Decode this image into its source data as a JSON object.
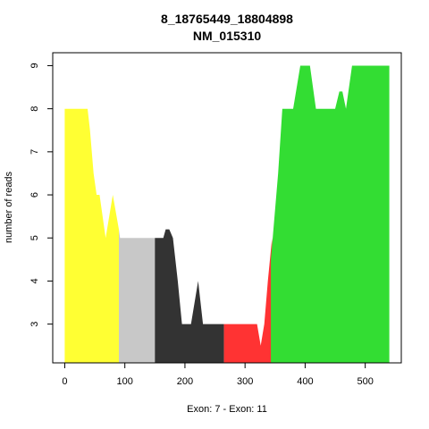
{
  "chart_data": {
    "type": "area",
    "title": "8_18765449_18804898",
    "subtitle": "NM_015310",
    "xlabel": "Exon: 7 - Exon: 11",
    "ylabel": "number of reads",
    "xlim": [
      -20,
      560
    ],
    "ylim": [
      2.1,
      9.3
    ],
    "x_ticks": [
      "0",
      "100",
      "200",
      "300",
      "400",
      "500"
    ],
    "y_ticks": [
      "3",
      "4",
      "5",
      "6",
      "7",
      "8",
      "9"
    ],
    "grid": false,
    "series": [
      {
        "color": "#ffff33",
        "points": [
          [
            0,
            8
          ],
          [
            38,
            8
          ],
          [
            42,
            7.5
          ],
          [
            48,
            6.5
          ],
          [
            53,
            6.0
          ],
          [
            58,
            6.0
          ],
          [
            68,
            5.0
          ],
          [
            80,
            6.0
          ],
          [
            90,
            5.2
          ]
        ]
      },
      {
        "color": "#c8c8c8",
        "points": [
          [
            90,
            5.2
          ],
          [
            92,
            5.0
          ],
          [
            150,
            5.0
          ]
        ]
      },
      {
        "color": "#333333",
        "points": [
          [
            150,
            5.0
          ],
          [
            164,
            5.0
          ],
          [
            168,
            5.2
          ],
          [
            174,
            5.2
          ],
          [
            180,
            5.0
          ],
          [
            188,
            4.0
          ],
          [
            195,
            3.0
          ],
          [
            210,
            3.0
          ],
          [
            222,
            4.0
          ],
          [
            230,
            3.0
          ],
          [
            265,
            3.0
          ]
        ]
      },
      {
        "color": "#ff3333",
        "points": [
          [
            265,
            3.0
          ],
          [
            320,
            3.0
          ],
          [
            326,
            2.5
          ],
          [
            332,
            3.0
          ],
          [
            338,
            4.0
          ],
          [
            345,
            5.0
          ]
        ]
      },
      {
        "color": "#33dd33",
        "points": [
          [
            343,
            4.5
          ],
          [
            355,
            6.5
          ],
          [
            362,
            8.0
          ],
          [
            380,
            8.0
          ],
          [
            392,
            9.0
          ],
          [
            408,
            9.0
          ],
          [
            418,
            8.0
          ],
          [
            450,
            8.0
          ],
          [
            457,
            8.4
          ],
          [
            462,
            8.4
          ],
          [
            468,
            8.0
          ],
          [
            478,
            9.0
          ],
          [
            540,
            9.0
          ]
        ]
      }
    ]
  }
}
